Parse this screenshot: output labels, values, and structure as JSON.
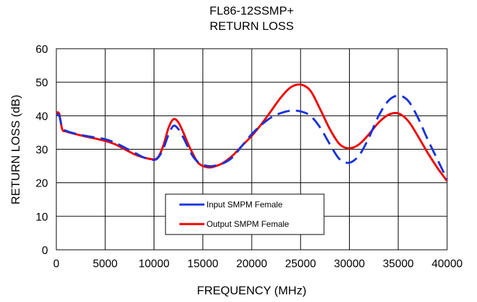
{
  "chart_data": {
    "type": "line",
    "title": "FL86-12SSMP+",
    "subtitle": "RETURN LOSS",
    "xlabel": "FREQUENCY (MHz)",
    "ylabel": "RETURN LOSS (dB)",
    "xlim": [
      0,
      40000
    ],
    "ylim": [
      0,
      60
    ],
    "xticks": [
      0,
      5000,
      10000,
      15000,
      20000,
      25000,
      30000,
      35000,
      40000
    ],
    "yticks": [
      0,
      10,
      20,
      30,
      40,
      50,
      60
    ],
    "grid": true,
    "legend_position": "center",
    "series": [
      {
        "name": "Input SMPM Female",
        "color": "#1a33d9",
        "dash": true,
        "x": [
          10,
          300,
          600,
          1000,
          2000,
          3000,
          4000,
          5000,
          6000,
          7000,
          8000,
          9000,
          10000,
          10500,
          11000,
          11500,
          12000,
          12500,
          13000,
          13500,
          14000,
          14500,
          15000,
          15500,
          16000,
          17000,
          18000,
          19000,
          20000,
          21000,
          22000,
          23000,
          24000,
          25000,
          26000,
          27000,
          28000,
          29000,
          30000,
          31000,
          32000,
          33000,
          34000,
          35000,
          36000,
          37000,
          38000,
          39000,
          40000
        ],
        "y": [
          40.5,
          40,
          36.5,
          35.5,
          34.6,
          34,
          33.5,
          33,
          32,
          30.5,
          29,
          27.5,
          26.8,
          27.8,
          30.5,
          34.5,
          37,
          36,
          33.5,
          30.5,
          27.8,
          26.2,
          25.4,
          25,
          25,
          25.7,
          27.5,
          31,
          34.5,
          37.3,
          39.5,
          40.8,
          41.5,
          41.3,
          40,
          36.5,
          31.5,
          27,
          26,
          28.2,
          33.5,
          40,
          44.5,
          46,
          44.5,
          39.5,
          33,
          27,
          21
        ]
      },
      {
        "name": "Output SMPM Female",
        "color": "#ee0000",
        "dash": false,
        "x": [
          10,
          300,
          600,
          1000,
          2000,
          3000,
          4000,
          5000,
          6000,
          7000,
          8000,
          9000,
          10000,
          10500,
          11000,
          11500,
          12000,
          12500,
          13000,
          13500,
          14000,
          14500,
          15000,
          15500,
          16000,
          17000,
          18000,
          19000,
          20000,
          21000,
          22000,
          23000,
          24000,
          25000,
          26000,
          27000,
          28000,
          29000,
          30000,
          31000,
          32000,
          33000,
          34000,
          35000,
          36000,
          37000,
          38000,
          39000,
          40000
        ],
        "y": [
          41,
          40.5,
          36,
          35.3,
          34.5,
          33.8,
          33.2,
          32.5,
          31.5,
          30,
          28.5,
          27.5,
          27,
          28,
          31.5,
          36.5,
          39,
          38,
          35,
          31.5,
          28.5,
          26,
          25,
          24.6,
          24.7,
          25.8,
          28,
          31,
          34,
          37.5,
          41.5,
          45.5,
          48.5,
          49.3,
          47.5,
          42,
          36,
          31.5,
          30.3,
          31.5,
          34.5,
          38,
          40.3,
          40.7,
          38.5,
          34,
          29,
          24.5,
          20.5
        ]
      }
    ]
  }
}
